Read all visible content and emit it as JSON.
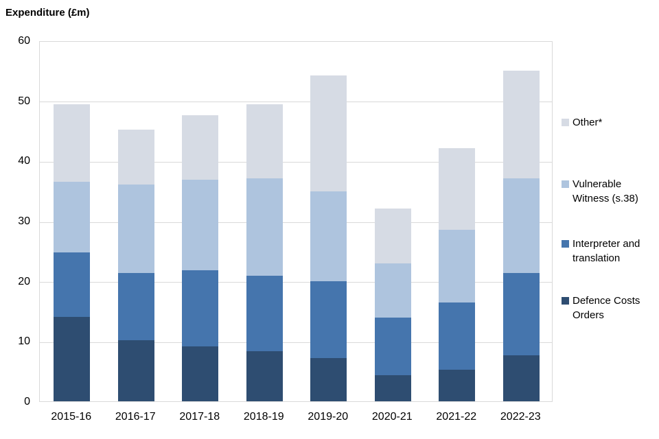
{
  "title": "Expenditure (£m)",
  "chart_data": {
    "type": "bar",
    "stacked": true,
    "title": "Expenditure (£m)",
    "xlabel": "",
    "ylabel": "Expenditure (£m)",
    "ylim": [
      0,
      60
    ],
    "yticks": [
      0,
      10,
      20,
      30,
      40,
      50,
      60
    ],
    "grid": true,
    "legend_position": "right",
    "categories": [
      "2015-16",
      "2016-17",
      "2017-18",
      "2018-19",
      "2019-20",
      "2020-21",
      "2021-22",
      "2022-23"
    ],
    "series": [
      {
        "name": "Defence Costs Orders",
        "color": "#2E4D71",
        "values": [
          14.0,
          10.1,
          9.1,
          8.3,
          7.2,
          4.3,
          5.2,
          7.6
        ]
      },
      {
        "name": "Interpreter and translation",
        "color": "#4575AD",
        "values": [
          10.8,
          11.2,
          12.7,
          12.6,
          12.8,
          9.6,
          11.2,
          13.7
        ]
      },
      {
        "name": "Vulnerable Witness (s.38)",
        "color": "#AEC4DE",
        "values": [
          11.7,
          14.8,
          15.0,
          16.2,
          14.9,
          9.0,
          12.1,
          15.8
        ]
      },
      {
        "name": "Other*",
        "color": "#D6DBE4",
        "values": [
          12.9,
          9.1,
          10.8,
          12.3,
          19.3,
          9.1,
          13.6,
          17.9
        ]
      }
    ],
    "totals": [
      49.4,
      45.2,
      47.6,
      49.4,
      54.2,
      32.0,
      42.1,
      55.0
    ],
    "legend_order": [
      "Other*",
      "Vulnerable Witness (s.38)",
      "Interpreter and translation",
      "Defence Costs Orders"
    ]
  },
  "colors": {
    "gridline": "#d9d9d9",
    "plot_border": "#d9d9d9",
    "text": "#000000",
    "background": "#ffffff"
  }
}
